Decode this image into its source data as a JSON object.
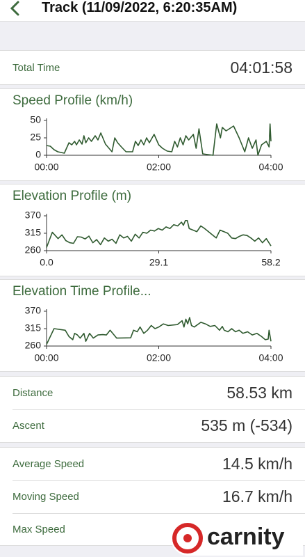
{
  "header": {
    "title": "Track (11/09/2022, 6:20:35AM)"
  },
  "total_time": {
    "label": "Total Time",
    "value": "04:01:58"
  },
  "charts": [
    {
      "type": "line",
      "title": "Speed Profile (km/h)",
      "color": "#2f5a2f",
      "x": [
        0,
        4,
        8,
        12,
        19,
        22,
        24,
        27,
        30,
        32,
        35,
        38,
        40,
        42,
        45,
        48,
        52,
        55,
        58,
        63,
        70,
        73,
        76,
        80,
        85,
        92,
        95,
        98,
        101,
        104,
        107,
        110,
        115,
        120,
        124,
        129,
        134,
        137,
        140,
        143,
        146,
        149,
        152,
        157,
        160,
        163,
        167,
        178,
        182,
        186,
        188,
        192,
        200,
        206,
        212,
        216,
        220,
        224,
        226,
        230,
        235,
        238,
        239,
        240
      ],
      "values": [
        14,
        13,
        8,
        5,
        3,
        12,
        18,
        15,
        20,
        15,
        22,
        16,
        28,
        18,
        25,
        20,
        28,
        22,
        32,
        16,
        5,
        25,
        18,
        12,
        5,
        5,
        20,
        14,
        22,
        15,
        25,
        18,
        30,
        15,
        10,
        6,
        5,
        20,
        12,
        25,
        15,
        28,
        22,
        30,
        10,
        38,
        2,
        0,
        45,
        25,
        40,
        35,
        42,
        25,
        5,
        25,
        10,
        22,
        0,
        15,
        20,
        12,
        45,
        20
      ],
      "xlim": [
        0,
        240
      ],
      "xticks": [
        {
          "value": 0,
          "label": "00:00"
        },
        {
          "value": 120,
          "label": "02:00"
        },
        {
          "value": 240,
          "label": "04:00"
        }
      ],
      "ylim": [
        0,
        50
      ],
      "yticks": [
        0,
        25,
        50
      ]
    },
    {
      "type": "line",
      "title": "Elevation Profile (m)",
      "color": "#2f5a2f",
      "x": [
        0,
        1.5,
        3,
        4,
        5,
        6,
        7,
        8,
        9,
        10,
        11,
        12,
        13,
        14,
        15,
        16,
        17,
        18,
        19,
        20,
        21,
        22,
        23,
        24,
        25,
        26,
        27,
        28,
        29,
        30,
        31,
        32,
        33,
        34,
        35,
        35.5,
        36,
        36.5,
        37,
        38,
        39,
        40,
        41,
        42,
        43,
        44,
        45,
        46,
        47,
        48,
        49,
        50,
        51,
        52,
        53,
        54,
        55,
        56,
        57,
        58.2
      ],
      "values": [
        270,
        318,
        298,
        310,
        292,
        285,
        283,
        304,
        303,
        297,
        306,
        285,
        295,
        279,
        300,
        290,
        296,
        283,
        310,
        300,
        305,
        290,
        312,
        300,
        318,
        315,
        325,
        322,
        330,
        325,
        335,
        330,
        342,
        338,
        350,
        340,
        355,
        355,
        330,
        325,
        320,
        338,
        330,
        320,
        310,
        300,
        325,
        320,
        315,
        300,
        298,
        305,
        310,
        308,
        300,
        290,
        300,
        285,
        298,
        275
      ],
      "xlim": [
        0,
        58.2
      ],
      "xticks": [
        {
          "value": 0,
          "label": "0.0"
        },
        29.1,
        58.2
      ],
      "ylim": [
        260,
        370
      ],
      "yticks": [
        260,
        315,
        370
      ]
    },
    {
      "type": "line",
      "title": "Elevation Time Profile...",
      "color": "#2f5a2f",
      "x": [
        0,
        8,
        20,
        24,
        28,
        30,
        33,
        36,
        40,
        42,
        46,
        50,
        55,
        60,
        64,
        68,
        75,
        90,
        93,
        97,
        100,
        104,
        108,
        112,
        116,
        120,
        125,
        130,
        140,
        145,
        147,
        149,
        151,
        153,
        155,
        158,
        165,
        170,
        175,
        180,
        185,
        188,
        190,
        194,
        198,
        202,
        206,
        210,
        215,
        220,
        225,
        230,
        234,
        237,
        238,
        240
      ],
      "values": [
        265,
        315,
        310,
        290,
        280,
        300,
        295,
        285,
        300,
        275,
        300,
        285,
        295,
        296,
        295,
        310,
        285,
        286,
        310,
        305,
        320,
        300,
        310,
        325,
        315,
        320,
        330,
        325,
        328,
        340,
        320,
        345,
        330,
        350,
        325,
        320,
        335,
        330,
        322,
        325,
        310,
        322,
        310,
        305,
        315,
        305,
        310,
        300,
        305,
        295,
        300,
        290,
        280,
        282,
        310,
        275
      ],
      "xlim": [
        0,
        240
      ],
      "xticks": [
        {
          "value": 0,
          "label": "00:00"
        },
        {
          "value": 120,
          "label": "02:00"
        },
        {
          "value": 240,
          "label": "04:00"
        }
      ],
      "ylim": [
        260,
        370
      ],
      "yticks": [
        260,
        315,
        370
      ]
    }
  ],
  "stats": [
    [
      {
        "label": "Distance",
        "value": "58.53 km"
      },
      {
        "label": "Ascent",
        "value": "535 m (-534)"
      }
    ],
    [
      {
        "label": "Average Speed",
        "value": "14.5 km/h"
      },
      {
        "label": "Moving Speed",
        "value": "16.7 km/h"
      },
      {
        "label": "Max Speed"
      }
    ]
  ],
  "watermark": "carnity"
}
